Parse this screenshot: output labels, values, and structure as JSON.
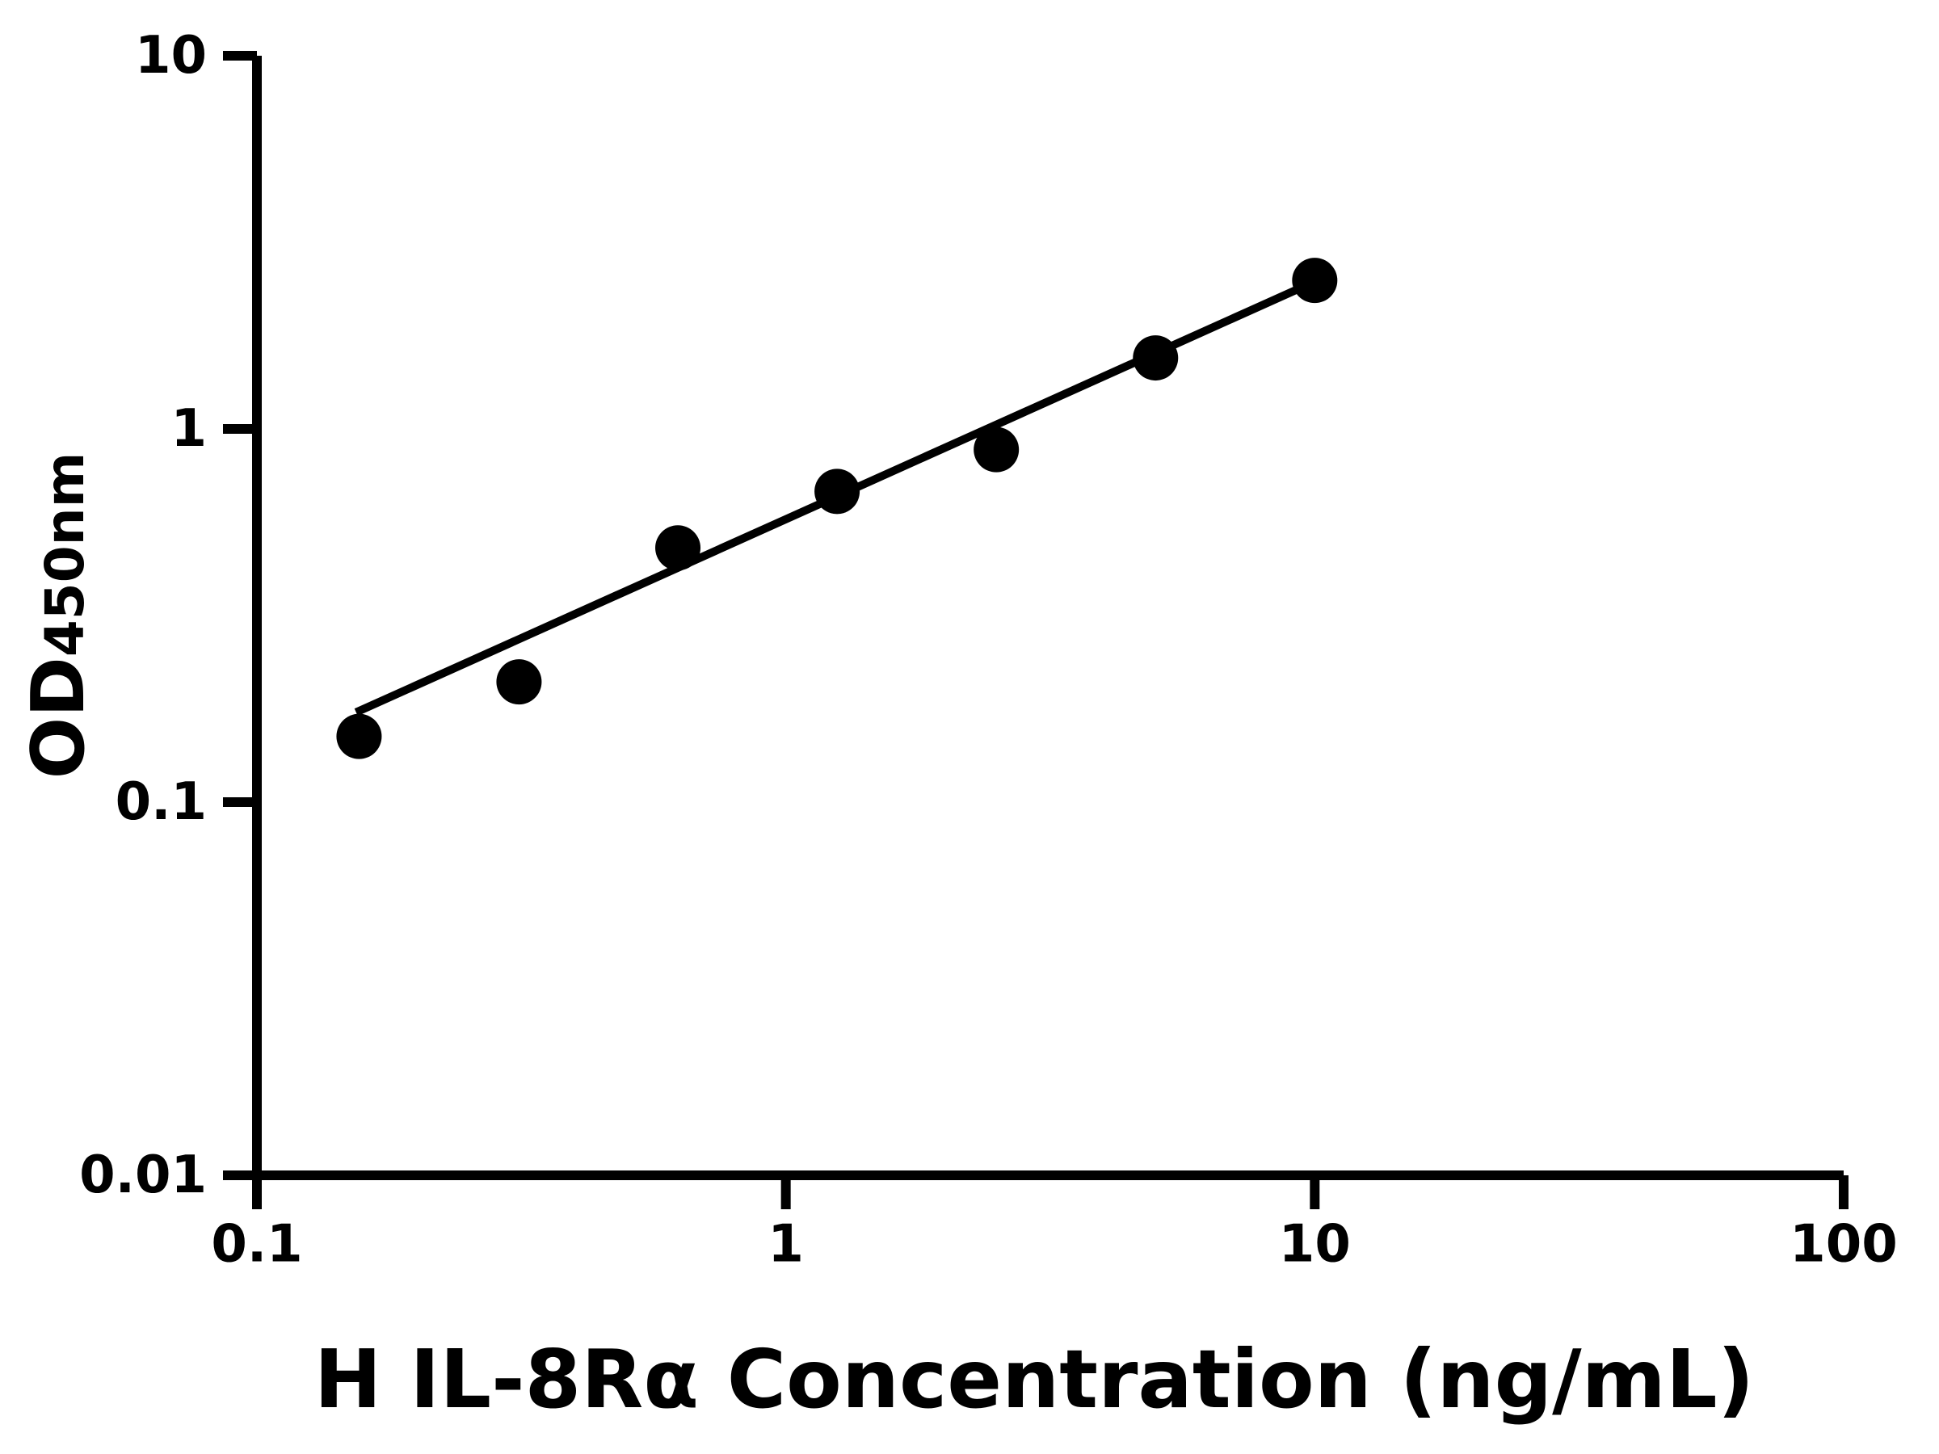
{
  "figure": {
    "background_color": "#ffffff",
    "ink_color": "#000000"
  },
  "chart_data": {
    "type": "scatter",
    "title": "",
    "xlabel": "H IL-8Rα Concentration (ng/mL)",
    "ylabel": "OD450nm",
    "ylabel_main": "OD",
    "ylabel_sub": "450nm",
    "x_scale": "log",
    "y_scale": "log",
    "xlim": [
      0.1,
      100
    ],
    "ylim": [
      0.01,
      10
    ],
    "grid": false,
    "legend_position": "none",
    "x_ticks": [
      {
        "value": 0.1,
        "label": "0.1"
      },
      {
        "value": 1,
        "label": "1"
      },
      {
        "value": 10,
        "label": "10"
      },
      {
        "value": 100,
        "label": "100"
      }
    ],
    "y_ticks": [
      {
        "value": 0.01,
        "label": "0.01"
      },
      {
        "value": 0.1,
        "label": "0.1"
      },
      {
        "value": 1,
        "label": "1"
      },
      {
        "value": 10,
        "label": "10"
      }
    ],
    "series": [
      {
        "name": "standard-curve-points",
        "marker": "filled-circle",
        "color": "#000000",
        "points": [
          [
            0.156,
            0.15
          ],
          [
            0.313,
            0.21
          ],
          [
            0.625,
            0.48
          ],
          [
            1.25,
            0.68
          ],
          [
            2.5,
            0.88
          ],
          [
            5.0,
            1.55
          ],
          [
            10.0,
            2.5
          ]
        ]
      }
    ],
    "trend_line": {
      "from": [
        0.154,
        0.174
      ],
      "to": [
        10.05,
        2.49
      ],
      "color": "#000000"
    }
  }
}
